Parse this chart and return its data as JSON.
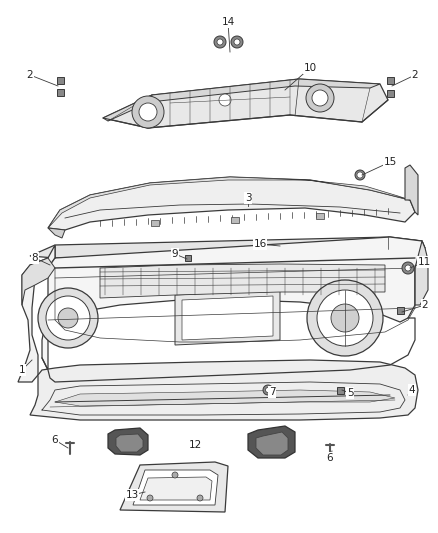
{
  "background_color": "#ffffff",
  "line_color": "#3a3a3a",
  "label_color": "#222222",
  "fig_width": 4.38,
  "fig_height": 5.33,
  "dpi": 100
}
